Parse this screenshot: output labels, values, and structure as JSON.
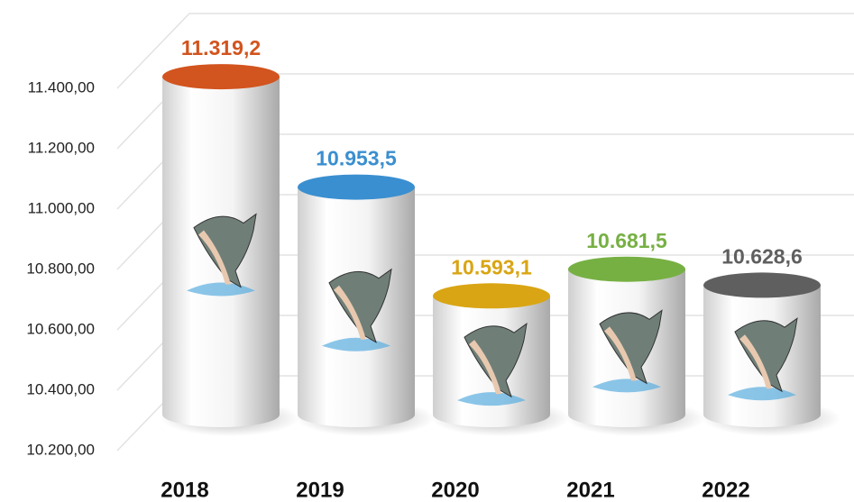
{
  "chart_data": {
    "type": "bar",
    "categories": [
      "2018",
      "2019",
      "2020",
      "2021",
      "2022"
    ],
    "values": [
      11319.2,
      10953.5,
      10593.1,
      10681.5,
      10628.6
    ],
    "value_labels": [
      "11.319,2",
      "10.953,5",
      "10.593,1",
      "10.681,5",
      "10.628,6"
    ],
    "colors": [
      "#d2541e",
      "#3a8fd0",
      "#d9a514",
      "#76b043",
      "#5f5f5f"
    ],
    "ylim": [
      10200,
      11600
    ],
    "yticks": [
      {
        "value": 10200,
        "label": "10.200,00"
      },
      {
        "value": 10400,
        "label": "10.400,00"
      },
      {
        "value": 10600,
        "label": "10.600,00"
      },
      {
        "value": 10800,
        "label": "10.800,00"
      },
      {
        "value": 11000,
        "label": "11.000,00"
      },
      {
        "value": 11200,
        "label": "11.200,00"
      },
      {
        "value": 11400,
        "label": "11.400,00"
      }
    ],
    "grid": true
  }
}
